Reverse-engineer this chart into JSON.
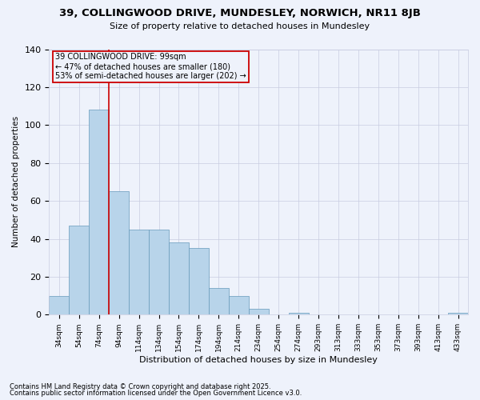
{
  "title": "39, COLLINGWOOD DRIVE, MUNDESLEY, NORWICH, NR11 8JB",
  "subtitle": "Size of property relative to detached houses in Mundesley",
  "xlabel": "Distribution of detached houses by size in Mundesley",
  "ylabel": "Number of detached properties",
  "bar_values": [
    10,
    47,
    108,
    65,
    45,
    45,
    38,
    35,
    14,
    10,
    3,
    0,
    1,
    0,
    0,
    0,
    0,
    0,
    0,
    0,
    1
  ],
  "bar_labels": [
    "34sqm",
    "54sqm",
    "74sqm",
    "94sqm",
    "114sqm",
    "134sqm",
    "154sqm",
    "174sqm",
    "194sqm",
    "214sqm",
    "234sqm",
    "254sqm",
    "274sqm",
    "293sqm",
    "313sqm",
    "333sqm",
    "353sqm",
    "373sqm",
    "393sqm",
    "413sqm",
    "433sqm"
  ],
  "bar_color": "#b8d4ea",
  "bar_edge_color": "#6699bb",
  "property_label": "39 COLLINGWOOD DRIVE: 99sqm",
  "annotation_line1": "← 47% of detached houses are smaller (180)",
  "annotation_line2": "53% of semi-detached houses are larger (202) →",
  "vline_color": "#cc0000",
  "vline_x": 2.5,
  "ylim": [
    0,
    140
  ],
  "yticks": [
    0,
    20,
    40,
    60,
    80,
    100,
    120,
    140
  ],
  "footnote1": "Contains HM Land Registry data © Crown copyright and database right 2025.",
  "footnote2": "Contains public sector information licensed under the Open Government Licence v3.0.",
  "bg_color": "#eef2fb",
  "grid_color": "#c8cce0",
  "annotation_box_color": "#cc0000"
}
